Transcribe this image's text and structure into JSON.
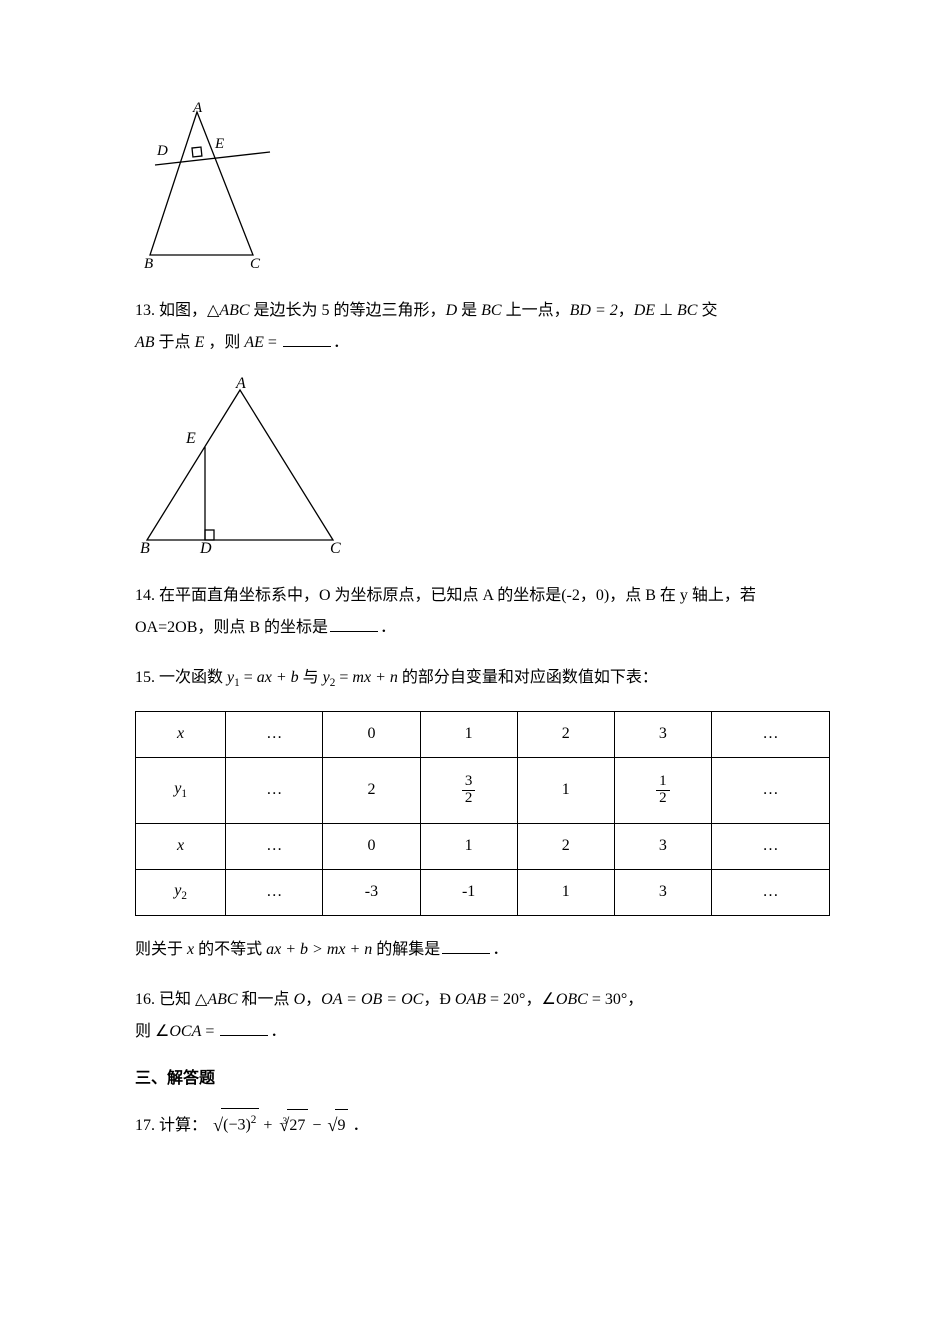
{
  "fig12": {
    "labels": {
      "A": "A",
      "B": "B",
      "C": "C",
      "D": "D",
      "E": "E"
    },
    "stroke": "#000000"
  },
  "q13": {
    "prefix": "13. 如图，",
    "triangle": "△",
    "abc": "ABC",
    "mid1": " 是边长为 5 的等边三角形，",
    "D": "D",
    "mid2": " 是 ",
    "BC": "BC",
    "mid3": " 上一点，",
    "bd_eq": "BD = 2",
    "sep1": "，",
    "DE": "DE",
    "perp": " ⊥ ",
    "BC2": "BC",
    "mid4": " 交",
    "AB": "AB",
    "mid5": " 于点 ",
    "E": "E",
    "mid6": " ，则 ",
    "AE": "AE",
    "eq": " = ",
    "period": "．"
  },
  "fig13": {
    "labels": {
      "A": "A",
      "B": "B",
      "C": "C",
      "D": "D",
      "E": "E"
    },
    "stroke": "#000000"
  },
  "q14": {
    "line1a": "14. 在平面直角坐标系中，O 为坐标原点，已知点 A 的坐标是(-2，0)，点 B 在 y 轴上，若",
    "line2a": "OA=2OB，则点 B 的坐标是",
    "period": "．"
  },
  "q15": {
    "prefix": "15. 一次函数 ",
    "y1": "y",
    "sub1": "1",
    "eq1": " = ",
    "axb": "ax + b",
    "and": " 与 ",
    "y2": "y",
    "sub2": "2",
    "eq2": " = ",
    "mxn": "mx + n",
    "suffix": " 的部分自变量和对应函数值如下表：",
    "table": {
      "cols": 7,
      "rowheads": [
        "x",
        "y₁",
        "x",
        "y₂"
      ],
      "rows": [
        [
          "…",
          "0",
          "1",
          "2",
          "3",
          "…"
        ],
        [
          "…",
          "2",
          {
            "frac": [
              "3",
              "2"
            ]
          },
          "1",
          {
            "frac": [
              "1",
              "2"
            ]
          },
          "…"
        ],
        [
          "…",
          "0",
          "1",
          "2",
          "3",
          "…"
        ],
        [
          "…",
          "-3",
          "-1",
          "1",
          "3",
          "…"
        ]
      ],
      "col_widths": [
        "13%",
        "14%",
        "14%",
        "14%",
        "14%",
        "14%",
        "17%"
      ]
    },
    "post_a": "则关于 ",
    "x": "x",
    "post_b": " 的不等式 ",
    "ineq": "ax + b > mx + n",
    "post_c": " 的解集是",
    "period": "．"
  },
  "q16": {
    "prefix": "16. 已知 ",
    "tri": "△",
    "abc": "ABC",
    "mid1": " 和一点 ",
    "O": "O",
    "sep": "，",
    "oaobc": "OA = OB = OC",
    "sep2": "，",
    "ang": "Ð ",
    "oab": "OAB",
    "eq1": " = 20",
    "deg1": "°",
    "sep3": "，",
    "angle2": "∠",
    "obc": "OBC",
    "eq2": " = 30°",
    "sep4": "，",
    "line2a": "则 ",
    "angle3": "∠",
    "oca": "OCA",
    "eq3": " = ",
    "period": "．"
  },
  "section3": "三、解答题",
  "q17": {
    "prefix": "17. 计算：",
    "rad1_inner": "(−3)",
    "rad1_sup": "2",
    "plus": " + ",
    "cbrt_idx": "3",
    "rad2_inner": "27",
    "minus": " − ",
    "rad3_inner": "9",
    "period": "．"
  }
}
